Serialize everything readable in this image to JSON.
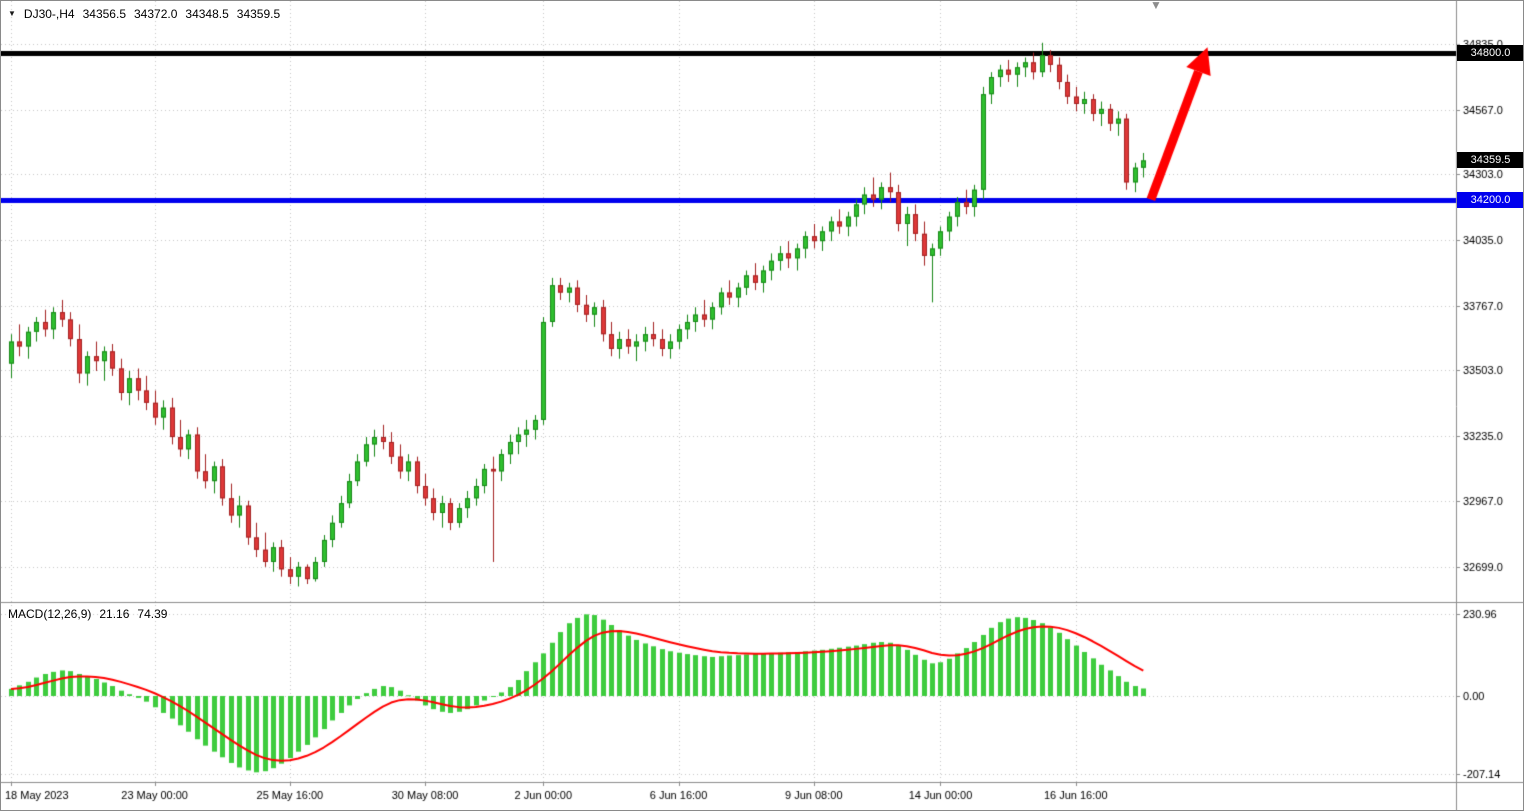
{
  "header": {
    "dropdown_glyph": "▼",
    "symbol": "DJ30-,H4",
    "open": "34356.5",
    "high": "34372.0",
    "low": "34348.5",
    "close": "34359.5"
  },
  "indicator": {
    "name": "MACD(12,26,9)",
    "value_main": "21.16",
    "value_signal": "74.39"
  },
  "icons": {
    "object_anchor_glyph": "▼"
  },
  "colors": {
    "bull": "#2fbf2f",
    "bull_dark": "#178817",
    "bear": "#de3838",
    "bear_dark": "#a32222",
    "macd_bar": "#3ecc3e",
    "signal_line": "#ff0000",
    "grid": "#c6c6c6",
    "separator": "#8c8c8c",
    "axis_text": "#000000",
    "resistance": "#000000",
    "support": "#0000ee",
    "current_tag_bg": "#000000",
    "tag_text": "#ffffff",
    "arrow": "#ff0000"
  },
  "chart_data": {
    "type": "candlestick",
    "symbol": "DJ30-",
    "timeframe": "H4",
    "title": "DJ30-,H4 34356.5 34372.0 34348.5 34359.5",
    "grid": true,
    "price_range_visible": [
      32550,
      34980
    ],
    "price_ticks": [
      {
        "label": "34835.0",
        "value": 34835
      },
      {
        "label": "34567.0",
        "value": 34567
      },
      {
        "label": "34303.0",
        "value": 34303
      },
      {
        "label": "34035.0",
        "value": 34035
      },
      {
        "label": "33767.0",
        "value": 33767
      },
      {
        "label": "33503.0",
        "value": 33503
      },
      {
        "label": "33235.0",
        "value": 33235
      },
      {
        "label": "32967.0",
        "value": 32967
      },
      {
        "label": "32699.0",
        "value": 32699
      }
    ],
    "time_ticks": [
      {
        "label": "18 May 2023",
        "i": 0
      },
      {
        "label": "23 May 00:00",
        "i": 17
      },
      {
        "label": "25 May 16:00",
        "i": 33
      },
      {
        "label": "30 May 08:00",
        "i": 49
      },
      {
        "label": "2 Jun 00:00",
        "i": 63
      },
      {
        "label": "6 Jun 16:00",
        "i": 79
      },
      {
        "label": "9 Jun 08:00",
        "i": 95
      },
      {
        "label": "14 Jun 00:00",
        "i": 110
      },
      {
        "label": "16 Jun 16:00",
        "i": 126
      }
    ],
    "candles": [
      [
        33530,
        33650,
        33470,
        33620
      ],
      [
        33620,
        33690,
        33560,
        33600
      ],
      [
        33600,
        33680,
        33550,
        33660
      ],
      [
        33660,
        33720,
        33620,
        33700
      ],
      [
        33700,
        33750,
        33640,
        33670
      ],
      [
        33670,
        33760,
        33630,
        33740
      ],
      [
        33740,
        33790,
        33680,
        33710
      ],
      [
        33710,
        33740,
        33600,
        33630
      ],
      [
        33630,
        33690,
        33450,
        33490
      ],
      [
        33490,
        33580,
        33440,
        33560
      ],
      [
        33560,
        33620,
        33500,
        33540
      ],
      [
        33540,
        33600,
        33460,
        33580
      ],
      [
        33580,
        33610,
        33480,
        33510
      ],
      [
        33510,
        33550,
        33380,
        33410
      ],
      [
        33410,
        33500,
        33360,
        33470
      ],
      [
        33470,
        33510,
        33380,
        33420
      ],
      [
        33420,
        33480,
        33340,
        33370
      ],
      [
        33370,
        33420,
        33280,
        33310
      ],
      [
        33310,
        33380,
        33260,
        33350
      ],
      [
        33350,
        33390,
        33200,
        33230
      ],
      [
        33230,
        33300,
        33150,
        33180
      ],
      [
        33180,
        33260,
        33140,
        33240
      ],
      [
        33240,
        33270,
        33060,
        33090
      ],
      [
        33090,
        33160,
        33020,
        33050
      ],
      [
        33050,
        33130,
        33000,
        33110
      ],
      [
        33110,
        33140,
        32950,
        32980
      ],
      [
        32980,
        33040,
        32880,
        32910
      ],
      [
        32910,
        32990,
        32860,
        32950
      ],
      [
        32950,
        32970,
        32790,
        32820
      ],
      [
        32820,
        32880,
        32740,
        32770
      ],
      [
        32770,
        32840,
        32700,
        32720
      ],
      [
        32720,
        32800,
        32680,
        32780
      ],
      [
        32780,
        32810,
        32660,
        32690
      ],
      [
        32690,
        32740,
        32630,
        32660
      ],
      [
        32660,
        32720,
        32620,
        32700
      ],
      [
        32700,
        32710,
        32630,
        32650
      ],
      [
        32650,
        32740,
        32640,
        32720
      ],
      [
        32720,
        32830,
        32700,
        32810
      ],
      [
        32810,
        32910,
        32780,
        32880
      ],
      [
        32880,
        32990,
        32860,
        32960
      ],
      [
        32960,
        33080,
        32940,
        33050
      ],
      [
        33050,
        33160,
        33030,
        33130
      ],
      [
        33130,
        33230,
        33110,
        33200
      ],
      [
        33200,
        33260,
        33150,
        33230
      ],
      [
        33230,
        33280,
        33180,
        33210
      ],
      [
        33210,
        33250,
        33120,
        33150
      ],
      [
        33150,
        33200,
        33060,
        33090
      ],
      [
        33090,
        33160,
        33050,
        33130
      ],
      [
        33130,
        33150,
        33000,
        33030
      ],
      [
        33030,
        33080,
        32950,
        32980
      ],
      [
        32980,
        33020,
        32890,
        32920
      ],
      [
        32920,
        32990,
        32860,
        32960
      ],
      [
        32960,
        32980,
        32850,
        32880
      ],
      [
        32880,
        32960,
        32860,
        32940
      ],
      [
        32940,
        33010,
        32900,
        32980
      ],
      [
        32980,
        33060,
        32950,
        33030
      ],
      [
        33030,
        33120,
        33000,
        33100
      ],
      [
        33100,
        33150,
        32720,
        33090
      ],
      [
        33090,
        33180,
        33050,
        33160
      ],
      [
        33160,
        33240,
        33120,
        33210
      ],
      [
        33210,
        33270,
        33160,
        33240
      ],
      [
        33240,
        33300,
        33190,
        33260
      ],
      [
        33260,
        33320,
        33220,
        33300
      ],
      [
        33300,
        33720,
        33280,
        33700
      ],
      [
        33700,
        33880,
        33680,
        33850
      ],
      [
        33850,
        33880,
        33790,
        33820
      ],
      [
        33820,
        33860,
        33780,
        33840
      ],
      [
        33840,
        33870,
        33740,
        33770
      ],
      [
        33770,
        33810,
        33700,
        33730
      ],
      [
        33730,
        33780,
        33680,
        33760
      ],
      [
        33760,
        33790,
        33620,
        33650
      ],
      [
        33650,
        33700,
        33560,
        33590
      ],
      [
        33590,
        33660,
        33550,
        33630
      ],
      [
        33630,
        33670,
        33570,
        33600
      ],
      [
        33600,
        33650,
        33540,
        33620
      ],
      [
        33620,
        33680,
        33580,
        33650
      ],
      [
        33650,
        33700,
        33600,
        33630
      ],
      [
        33630,
        33670,
        33560,
        33590
      ],
      [
        33590,
        33650,
        33550,
        33620
      ],
      [
        33620,
        33690,
        33590,
        33670
      ],
      [
        33670,
        33730,
        33630,
        33700
      ],
      [
        33700,
        33760,
        33660,
        33730
      ],
      [
        33730,
        33790,
        33680,
        33710
      ],
      [
        33710,
        33780,
        33670,
        33760
      ],
      [
        33760,
        33840,
        33730,
        33820
      ],
      [
        33820,
        33870,
        33770,
        33800
      ],
      [
        33800,
        33860,
        33760,
        33840
      ],
      [
        33840,
        33910,
        33810,
        33890
      ],
      [
        33890,
        33940,
        33830,
        33860
      ],
      [
        33860,
        33930,
        33820,
        33910
      ],
      [
        33910,
        33980,
        33870,
        33950
      ],
      [
        33950,
        34010,
        33910,
        33980
      ],
      [
        33980,
        34030,
        33920,
        33960
      ],
      [
        33960,
        34020,
        33910,
        34000
      ],
      [
        34000,
        34070,
        33960,
        34050
      ],
      [
        34050,
        34100,
        34000,
        34030
      ],
      [
        34030,
        34090,
        33990,
        34070
      ],
      [
        34070,
        34130,
        34030,
        34110
      ],
      [
        34110,
        34160,
        34060,
        34090
      ],
      [
        34090,
        34150,
        34050,
        34130
      ],
      [
        34130,
        34200,
        34090,
        34180
      ],
      [
        34180,
        34250,
        34140,
        34220
      ],
      [
        34220,
        34290,
        34170,
        34200
      ],
      [
        34200,
        34270,
        34160,
        34250
      ],
      [
        34250,
        34310,
        34190,
        34230
      ],
      [
        34230,
        34260,
        34070,
        34100
      ],
      [
        34100,
        34170,
        34010,
        34140
      ],
      [
        34140,
        34180,
        34030,
        34060
      ],
      [
        34060,
        34110,
        33930,
        33970
      ],
      [
        33970,
        34020,
        33780,
        34000
      ],
      [
        34000,
        34090,
        33970,
        34070
      ],
      [
        34070,
        34150,
        34030,
        34130
      ],
      [
        34130,
        34210,
        34090,
        34190
      ],
      [
        34190,
        34240,
        34140,
        34170
      ],
      [
        34170,
        34260,
        34130,
        34240
      ],
      [
        34240,
        34660,
        34200,
        34630
      ],
      [
        34630,
        34720,
        34590,
        34700
      ],
      [
        34700,
        34750,
        34660,
        34730
      ],
      [
        34730,
        34770,
        34680,
        34710
      ],
      [
        34710,
        34760,
        34660,
        34740
      ],
      [
        34740,
        34780,
        34700,
        34760
      ],
      [
        34760,
        34800,
        34690,
        34720
      ],
      [
        34720,
        34840,
        34700,
        34790
      ],
      [
        34790,
        34810,
        34720,
        34750
      ],
      [
        34750,
        34780,
        34650,
        34680
      ],
      [
        34680,
        34710,
        34590,
        34620
      ],
      [
        34620,
        34660,
        34560,
        34590
      ],
      [
        34590,
        34640,
        34550,
        34610
      ],
      [
        34610,
        34630,
        34520,
        34550
      ],
      [
        34550,
        34600,
        34500,
        34570
      ],
      [
        34570,
        34590,
        34480,
        34510
      ],
      [
        34510,
        34560,
        34460,
        34530
      ],
      [
        34530,
        34550,
        34240,
        34270
      ],
      [
        34270,
        34350,
        34230,
        34330
      ],
      [
        34330,
        34390,
        34290,
        34359.5
      ]
    ],
    "macd": {
      "label": "MACD(12,26,9) 21.16 74.39",
      "signal_period": 9,
      "ticks": [
        {
          "label": "230.96",
          "value": 230.96
        },
        {
          "label": "0.00",
          "value": 0
        },
        {
          "label": "-207.14",
          "value": -207.14
        }
      ],
      "histogram": [
        20,
        30,
        40,
        52,
        62,
        68,
        72,
        70,
        62,
        55,
        48,
        38,
        28,
        15,
        5,
        -5,
        -15,
        -30,
        -45,
        -60,
        -78,
        -95,
        -115,
        -132,
        -148,
        -163,
        -178,
        -190,
        -198,
        -203,
        -200,
        -192,
        -180,
        -165,
        -148,
        -130,
        -110,
        -88,
        -65,
        -45,
        -25,
        -8,
        8,
        20,
        28,
        25,
        15,
        2,
        -12,
        -25,
        -35,
        -42,
        -45,
        -42,
        -35,
        -25,
        -12,
        -2,
        10,
        25,
        45,
        70,
        95,
        120,
        150,
        180,
        205,
        220,
        230,
        228,
        215,
        200,
        185,
        170,
        158,
        148,
        140,
        132,
        126,
        122,
        118,
        115,
        112,
        110,
        112,
        114,
        115,
        117,
        118,
        119,
        120,
        122,
        123,
        124,
        126,
        128,
        130,
        133,
        136,
        139,
        142,
        146,
        150,
        152,
        150,
        142,
        130,
        116,
        102,
        92,
        95,
        105,
        120,
        135,
        152,
        172,
        192,
        208,
        218,
        222,
        220,
        214,
        205,
        193,
        178,
        160,
        142,
        124,
        106,
        88,
        72,
        56,
        40,
        28,
        21.16
      ]
    },
    "hlines": [
      {
        "label": "34800.0",
        "value": 34800,
        "color_key": "resistance"
      },
      {
        "label": "34200.0",
        "value": 34200,
        "color_key": "support"
      }
    ],
    "current_price": {
      "label": "34359.5",
      "value": 34359.5
    },
    "arrow": {
      "from_i": 134.9,
      "from_price": 34200,
      "to_i": 141.6,
      "to_price": 34822
    },
    "anchor_marker_i": 135.5
  }
}
